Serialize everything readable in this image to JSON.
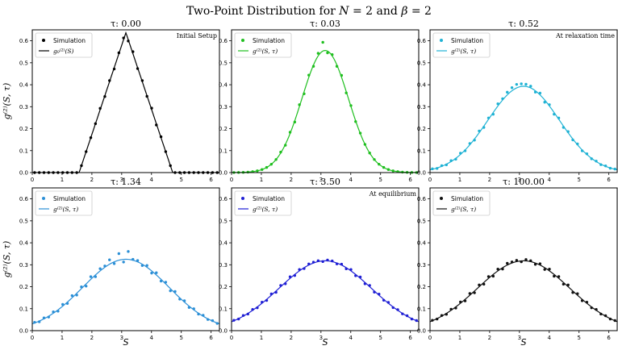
{
  "figure": {
    "suptitle": "Two-Point Distribution for N = 2 and β = 2",
    "xlabel": "S",
    "ylabel": "g⁽²⁾(S, τ)"
  },
  "chart_data": [
    {
      "type": "line",
      "title": "τ: 0.00",
      "annotation": "Initial Setup",
      "legend": [
        "Simulation",
        "g₀⁽²⁾(S)"
      ],
      "color": "#000000",
      "model": "triangle",
      "peak": 0.637,
      "xlim": [
        0,
        6.28
      ],
      "ylim": [
        0,
        0.65
      ],
      "xticks": [
        0,
        1,
        2,
        3,
        4,
        5,
        6
      ],
      "yticks": [
        0.0,
        0.1,
        0.2,
        0.3,
        0.4,
        0.5,
        0.6
      ],
      "sim_deviation": [
        0,
        0,
        0,
        0,
        0,
        0,
        0,
        0,
        0,
        0,
        0,
        0,
        0,
        0,
        0.006,
        -0.004,
        0.005,
        -0.006,
        0.004,
        0.008,
        -0.006,
        0.009,
        -0.004,
        0.005,
        -0.003,
        0.007,
        -0.006,
        0.004,
        0,
        0,
        0,
        0,
        0,
        0,
        0,
        0,
        0,
        0,
        0,
        0
      ]
    },
    {
      "type": "line",
      "title": "τ: 0.03",
      "annotation": "",
      "legend": [
        "Simulation",
        "g⁽²⁾(S, τ)"
      ],
      "color": "#1fbf1f",
      "model": "gaussian",
      "peak": 0.556,
      "width": 0.78,
      "xlim": [
        0,
        6.28
      ],
      "ylim": [
        0,
        0.65
      ],
      "xticks": [
        0,
        1,
        2,
        3,
        4,
        5,
        6
      ],
      "yticks": [
        0.0,
        0.1,
        0.2,
        0.3,
        0.4,
        0.5,
        0.6
      ],
      "sim_deviation": [
        0,
        0,
        0,
        0,
        0,
        0,
        0,
        0,
        0,
        0,
        0.004,
        -0.004,
        0.006,
        -0.006,
        0.008,
        -0.01,
        0.01,
        -0.006,
        0.012,
        0.04,
        -0.008,
        0.006,
        -0.006,
        0.009,
        -0.006,
        0.004,
        -0.004,
        0.002,
        0,
        0,
        0,
        0,
        0,
        0,
        0,
        0,
        0,
        0,
        0,
        0
      ]
    },
    {
      "type": "line",
      "title": "τ: 0.52",
      "annotation": "At relaxation time",
      "legend": [
        "Simulation",
        "g⁽²⁾(S, τ)"
      ],
      "color": "#1fb2d4",
      "model": "gaussian",
      "peak": 0.393,
      "width": 1.2,
      "xlim": [
        0,
        6.28
      ],
      "ylim": [
        0,
        0.65
      ],
      "xticks": [
        0,
        1,
        2,
        3,
        4,
        5,
        6
      ],
      "yticks": [
        0.0,
        0.1,
        0.2,
        0.3,
        0.4,
        0.5,
        0.6
      ],
      "sim_deviation": [
        0.002,
        -0.002,
        0.003,
        -0.003,
        0.004,
        -0.004,
        0.006,
        -0.004,
        0.006,
        -0.005,
        0.008,
        -0.006,
        0.006,
        -0.008,
        0.01,
        0.006,
        0.012,
        0.014,
        0.016,
        0.012,
        0.01,
        0.008,
        -0.006,
        0.008,
        -0.01,
        0.006,
        -0.008,
        0.006,
        -0.006,
        0.005,
        -0.004,
        0.004,
        -0.004,
        0.003,
        -0.002,
        0.002,
        -0.002,
        0.002,
        -0.001,
        0.001
      ]
    },
    {
      "type": "line",
      "title": "τ: 1.34",
      "annotation": "",
      "legend": [
        "Simulation",
        "g⁽²⁾(S, τ)"
      ],
      "color": "#2b8fd6",
      "model": "gaussian",
      "peak": 0.325,
      "width": 1.45,
      "xlim": [
        0,
        6.28
      ],
      "ylim": [
        0,
        0.65
      ],
      "xticks": [
        0,
        1,
        2,
        3,
        4,
        5,
        6
      ],
      "yticks": [
        0.0,
        0.1,
        0.2,
        0.3,
        0.4,
        0.5,
        0.6
      ],
      "sim_deviation": [
        0.003,
        -0.003,
        0.004,
        -0.004,
        0.006,
        -0.006,
        0.008,
        -0.006,
        0.01,
        -0.008,
        0.008,
        -0.01,
        0.012,
        -0.008,
        0.01,
        0.006,
        0.02,
        -0.008,
        0.03,
        -0.012,
        0.036,
        0.004,
        0.006,
        -0.006,
        0.008,
        -0.01,
        0.01,
        -0.008,
        0.008,
        -0.01,
        0.008,
        -0.006,
        0.006,
        -0.006,
        0.005,
        -0.004,
        0.004,
        -0.003,
        0.002,
        -0.002
      ]
    },
    {
      "type": "line",
      "title": "τ: 3.50",
      "annotation": "At equilibrium",
      "legend": [
        "Simulation",
        "g⁽²⁾(S, τ)"
      ],
      "color": "#1f1fd4",
      "model": "gaussian",
      "peak": 0.318,
      "width": 1.55,
      "xlim": [
        0,
        6.28
      ],
      "ylim": [
        0,
        0.65
      ],
      "xticks": [
        0,
        1,
        2,
        3,
        4,
        5,
        6
      ],
      "yticks": [
        0.0,
        0.1,
        0.2,
        0.3,
        0.4,
        0.5,
        0.6
      ],
      "sim_deviation": [
        0.002,
        -0.002,
        0.003,
        -0.003,
        0.004,
        -0.004,
        0.005,
        -0.005,
        0.006,
        -0.006,
        0.006,
        -0.006,
        0.007,
        -0.005,
        0.006,
        -0.004,
        0.005,
        0.004,
        0.004,
        -0.003,
        0.004,
        0.003,
        -0.004,
        0.004,
        -0.005,
        0.006,
        -0.006,
        0.006,
        -0.006,
        0.006,
        -0.005,
        0.005,
        -0.004,
        0.004,
        -0.003,
        0.003,
        -0.002,
        0.002,
        -0.002,
        0.001
      ]
    },
    {
      "type": "line",
      "title": "τ: 100.00",
      "annotation": "",
      "legend": [
        "Simulation",
        "g⁽²⁾(S, τ)"
      ],
      "color": "#111111",
      "model": "gaussian",
      "peak": 0.318,
      "width": 1.55,
      "xlim": [
        0,
        6.28
      ],
      "ylim": [
        0,
        0.65
      ],
      "xticks": [
        0,
        1,
        2,
        3,
        4,
        5,
        6
      ],
      "yticks": [
        0.0,
        0.1,
        0.2,
        0.3,
        0.4,
        0.5,
        0.6
      ],
      "sim_deviation": [
        0.002,
        -0.002,
        0.003,
        -0.004,
        0.005,
        -0.005,
        0.006,
        -0.007,
        0.008,
        -0.008,
        0.008,
        -0.008,
        0.008,
        -0.008,
        0.008,
        -0.006,
        0.008,
        0.005,
        0.006,
        -0.004,
        0.006,
        0.004,
        -0.006,
        0.006,
        -0.008,
        0.008,
        -0.008,
        0.008,
        -0.008,
        0.008,
        -0.007,
        0.007,
        -0.006,
        0.005,
        -0.004,
        0.004,
        -0.003,
        0.002,
        -0.002,
        0.001
      ]
    }
  ]
}
